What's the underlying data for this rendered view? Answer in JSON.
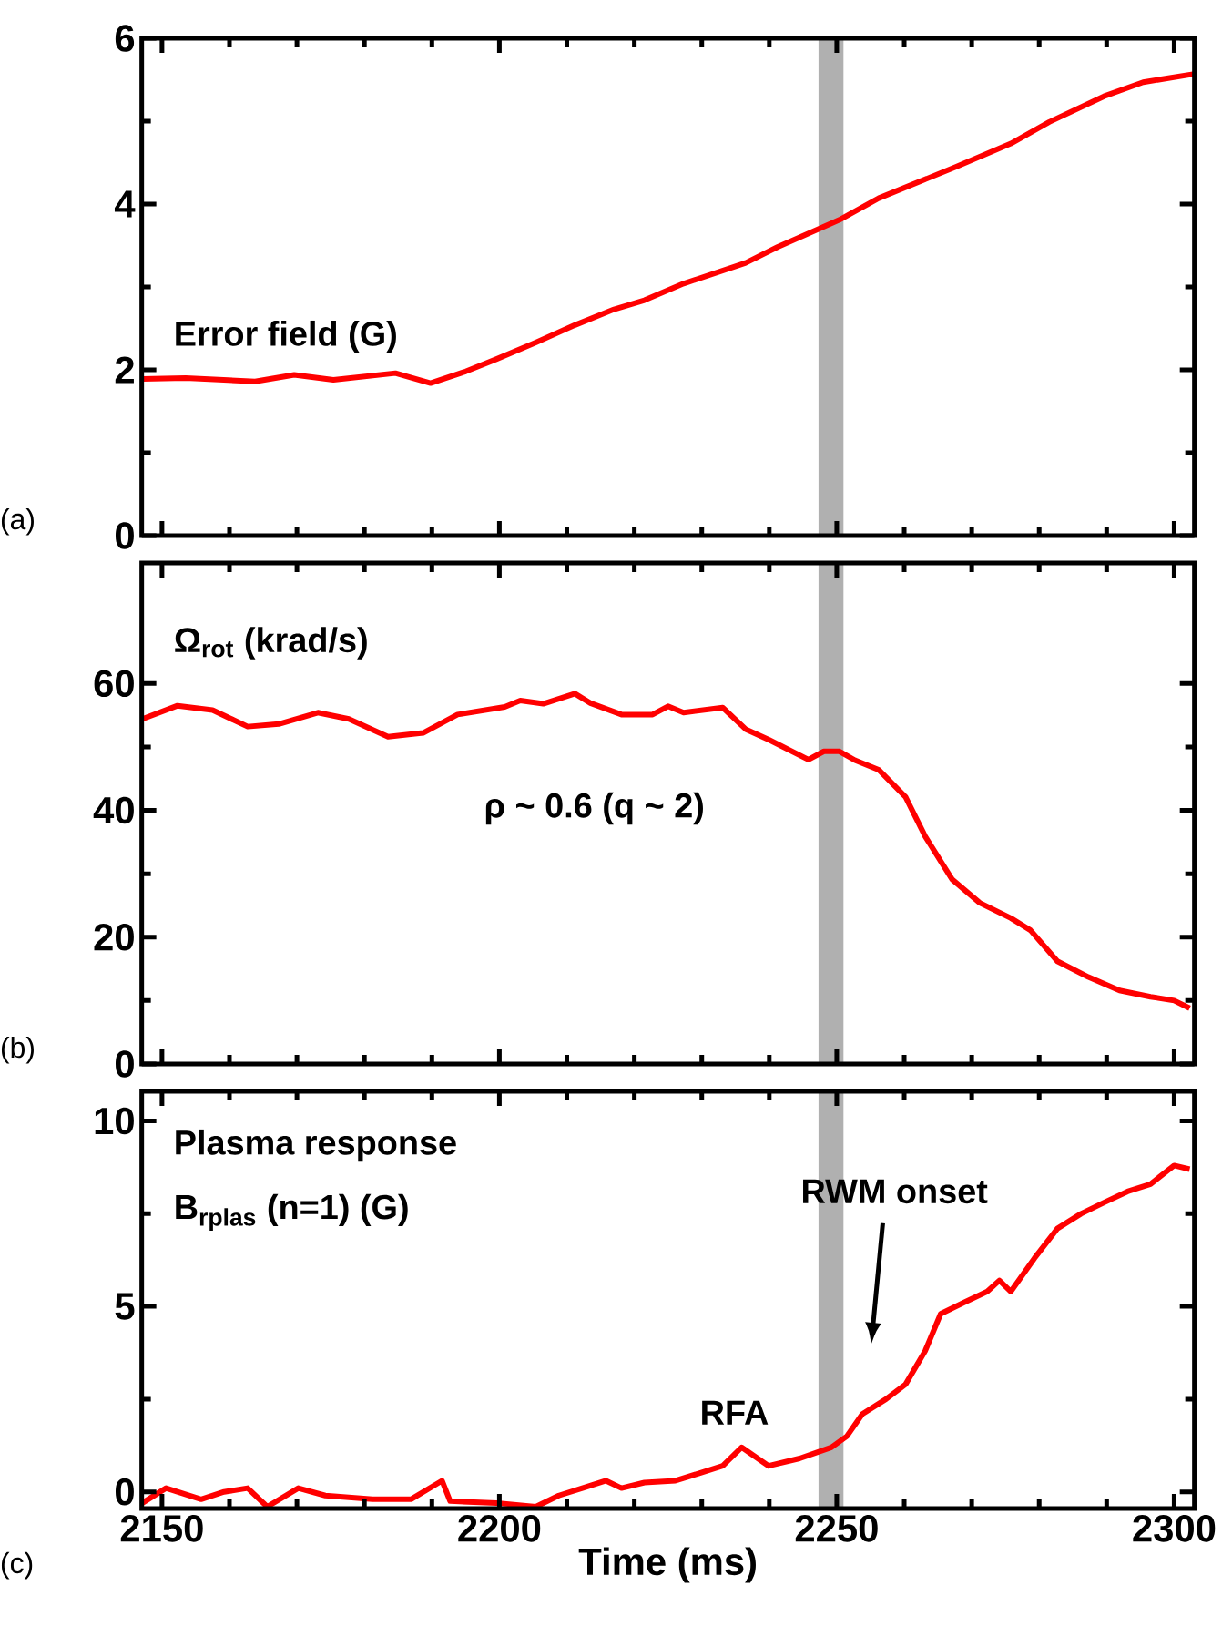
{
  "chart_data": [
    {
      "type": "line",
      "xlim": [
        2147,
        2303
      ],
      "xticks": [
        2150,
        2200,
        2250,
        2300
      ],
      "ylim": [
        0,
        6
      ],
      "yticks": [
        0,
        2,
        4,
        6
      ],
      "tick_labels": "y",
      "series": [
        {
          "color": "#ff0000",
          "x": [
            2147.1,
            2153.5,
            2163.8,
            2169.6,
            2175.4,
            2184.6,
            2189.8,
            2195,
            2199.6,
            2205.4,
            2211.2,
            2217,
            2221.5,
            2227.3,
            2236.5,
            2241.2,
            2250.4,
            2256.2,
            2267.7,
            2275.8,
            2281.5,
            2289.6,
            2295.4,
            2303
          ],
          "values": [
            1.89,
            1.9,
            1.86,
            1.94,
            1.88,
            1.96,
            1.84,
            1.98,
            2.13,
            2.33,
            2.54,
            2.73,
            2.84,
            3.04,
            3.29,
            3.48,
            3.81,
            4.07,
            4.45,
            4.73,
            4.99,
            5.3,
            5.47,
            5.57
          ]
        }
      ],
      "bands": [
        {
          "axis": "x",
          "from": 2247.3,
          "to": 2251,
          "color": "#b0b0b0"
        }
      ],
      "annotations": [
        "(a)",
        "Error field (G)"
      ]
    },
    {
      "type": "line",
      "xlim": [
        2147,
        2303
      ],
      "xticks": [
        2150,
        2200,
        2250,
        2300
      ],
      "ylim": [
        0,
        79
      ],
      "yticks": [
        0,
        20,
        40,
        60
      ],
      "tick_labels": "y",
      "series": [
        {
          "color": "#ff0000",
          "x": [
            2147.1,
            2152.3,
            2157.5,
            2162.7,
            2167.3,
            2173.1,
            2177.7,
            2183.5,
            2188.7,
            2193.8,
            2200.8,
            2203.1,
            2206.5,
            2211.2,
            2213.5,
            2218.1,
            2222.7,
            2225,
            2227.3,
            2233.1,
            2236.5,
            2240,
            2245.8,
            2248.1,
            2250.4,
            2252.7,
            2256.2,
            2260.2,
            2263.1,
            2267.1,
            2271.2,
            2275.8,
            2278.7,
            2282.7,
            2287.3,
            2291.9,
            2296.5,
            2300,
            2302.3
          ],
          "values": [
            54.4,
            56.5,
            55.8,
            53.2,
            53.6,
            55.4,
            54.4,
            51.6,
            52.2,
            55.1,
            56.3,
            57.3,
            56.8,
            58.4,
            56.9,
            55.1,
            55.1,
            56.4,
            55.4,
            56.2,
            52.8,
            51.1,
            48,
            49.3,
            49.3,
            47.9,
            46.4,
            42.1,
            35.9,
            29.1,
            25.4,
            23,
            21.1,
            16.2,
            13.7,
            11.6,
            10.6,
            10,
            8.8
          ]
        }
      ],
      "bands": [
        {
          "axis": "x",
          "from": 2247.3,
          "to": 2251,
          "color": "#b0b0b0"
        }
      ],
      "annotations": [
        "(b)",
        "Ω$_{rot}$ (krad/s)",
        "ρ ~ 0.6 (q ~ 2)"
      ]
    },
    {
      "type": "line",
      "xlim": [
        2147,
        2303
      ],
      "xticks": [
        2150,
        2200,
        2250,
        2300
      ],
      "ylim": [
        -0.45,
        10.8
      ],
      "yticks": [
        0,
        5,
        10
      ],
      "xlabel": "Time (ms)",
      "series": [
        {
          "color": "#ff0000",
          "x": [
            2147.1,
            2150.6,
            2155.8,
            2159.2,
            2162.7,
            2165.6,
            2170.2,
            2174.2,
            2181.2,
            2186.9,
            2191.5,
            2192.7,
            2199.6,
            2205.4,
            2208.8,
            2212.3,
            2215.8,
            2218.1,
            2221.5,
            2226.1,
            2229.6,
            2233.1,
            2235.9,
            2239.9,
            2244.5,
            2249.2,
            2251.5,
            2253.8,
            2257.3,
            2260.2,
            2263.1,
            2265.4,
            2268.8,
            2272.3,
            2274.1,
            2275.8,
            2279.3,
            2282.7,
            2286.2,
            2289.6,
            2293.1,
            2296.5,
            2300,
            2302.3
          ],
          "values": [
            -0.3,
            0.1,
            -0.2,
            0,
            0.1,
            -0.4,
            0.1,
            -0.1,
            -0.2,
            -0.2,
            0.3,
            -0.25,
            -0.3,
            -0.4,
            -0.1,
            0.1,
            0.3,
            0.1,
            0.25,
            0.3,
            0.5,
            0.7,
            1.2,
            0.7,
            0.9,
            1.2,
            1.5,
            2.1,
            2.5,
            2.9,
            3.8,
            4.8,
            5.1,
            5.4,
            5.7,
            5.4,
            6.3,
            7.1,
            7.5,
            7.8,
            8.1,
            8.3,
            8.8,
            8.7
          ]
        }
      ],
      "bands": [
        {
          "axis": "x",
          "from": 2247.3,
          "to": 2251,
          "color": "#b0b0b0"
        }
      ],
      "annotations": [
        "(c)",
        "Plasma response",
        "B$_{rplas}$ (n=1) (G)",
        "RFA",
        "RWM onset"
      ]
    }
  ]
}
